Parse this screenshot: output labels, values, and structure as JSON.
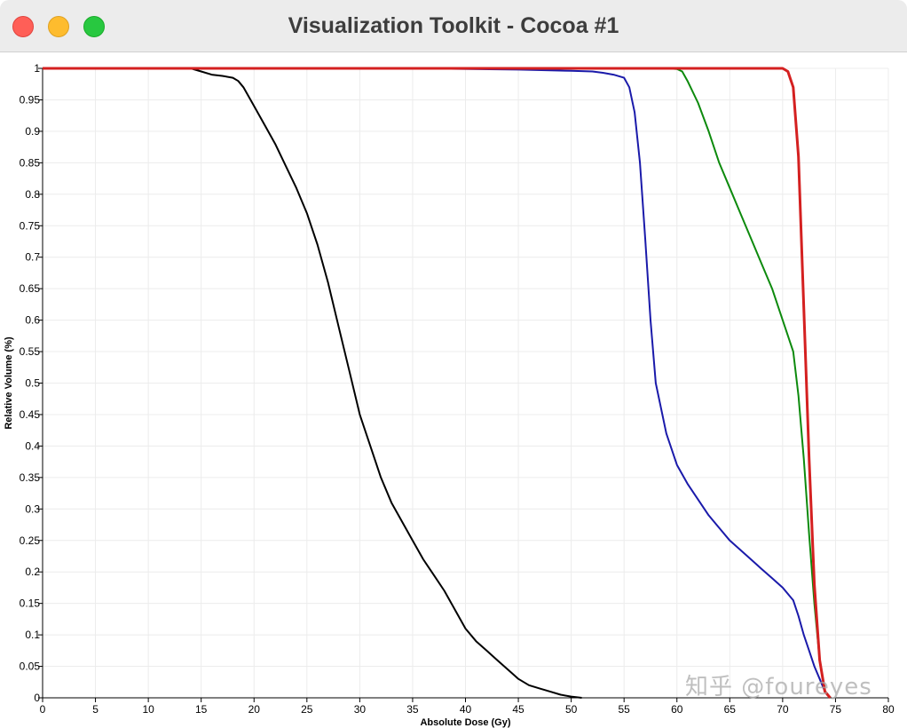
{
  "window": {
    "title": "Visualization Toolkit - Cocoa #1"
  },
  "watermark": {
    "text": "知乎 @foureyes"
  },
  "colors": {
    "titlebar": "#ececec",
    "close": "#ff5f57",
    "minimize": "#febc2e",
    "maximize": "#28c840"
  },
  "chart_data": {
    "type": "line",
    "xlabel": "Absolute Dose (Gy)",
    "ylabel": "Relative Volume (%)",
    "xlim": [
      0,
      80
    ],
    "ylim": [
      0,
      1
    ],
    "xticks": [
      0,
      5,
      10,
      15,
      20,
      25,
      30,
      35,
      40,
      45,
      50,
      55,
      60,
      65,
      70,
      75,
      80
    ],
    "yticks": [
      "0",
      "0.05",
      "0.1",
      "0.15",
      "0.2",
      "0.25",
      "0.3",
      "0.35",
      "0.4",
      "0.45",
      "0.5",
      "0.55",
      "0.6",
      "0.65",
      "0.7",
      "0.75",
      "0.8",
      "0.85",
      "0.9",
      "0.95",
      "1"
    ],
    "grid": true,
    "legend": "none",
    "series": [
      {
        "color": "#000000",
        "x": [
          0,
          14,
          15,
          16,
          17,
          18,
          18.5,
          19,
          20,
          21,
          22,
          23,
          24,
          25,
          26,
          27,
          28,
          29,
          30,
          31,
          32,
          33,
          34,
          35,
          36,
          37,
          38,
          39,
          40,
          41,
          42,
          43,
          44,
          45,
          46,
          47,
          48,
          49,
          50,
          51
        ],
        "y": [
          1,
          1,
          0.995,
          0.99,
          0.988,
          0.985,
          0.98,
          0.97,
          0.94,
          0.91,
          0.88,
          0.845,
          0.81,
          0.77,
          0.72,
          0.66,
          0.59,
          0.52,
          0.45,
          0.4,
          0.35,
          0.31,
          0.28,
          0.25,
          0.22,
          0.195,
          0.17,
          0.14,
          0.11,
          0.09,
          0.075,
          0.06,
          0.045,
          0.03,
          0.02,
          0.015,
          0.01,
          0.005,
          0.002,
          0
        ]
      },
      {
        "color": "#1a1aaa",
        "x": [
          0,
          35,
          45,
          50,
          52,
          53,
          54,
          55,
          55.5,
          56,
          56.5,
          57,
          57.5,
          58,
          59,
          60,
          61,
          62,
          63,
          64,
          65,
          66,
          67,
          68,
          69,
          70,
          71,
          71.5,
          72,
          72.5,
          73,
          73.5,
          74,
          74.5
        ],
        "y": [
          1,
          1,
          0.998,
          0.996,
          0.995,
          0.993,
          0.99,
          0.985,
          0.97,
          0.93,
          0.85,
          0.73,
          0.6,
          0.5,
          0.42,
          0.37,
          0.34,
          0.315,
          0.29,
          0.27,
          0.25,
          0.235,
          0.22,
          0.205,
          0.19,
          0.175,
          0.155,
          0.13,
          0.1,
          0.075,
          0.05,
          0.03,
          0.01,
          0
        ]
      },
      {
        "color": "#0d8a0d",
        "x": [
          0,
          59,
          60,
          60.5,
          61,
          62,
          63,
          64,
          65,
          66,
          67,
          68,
          69,
          70,
          71,
          71.5,
          72,
          72.5,
          73,
          73.5,
          74,
          74.5
        ],
        "y": [
          1,
          1,
          0.999,
          0.995,
          0.98,
          0.945,
          0.9,
          0.85,
          0.81,
          0.77,
          0.73,
          0.69,
          0.65,
          0.6,
          0.55,
          0.48,
          0.38,
          0.26,
          0.15,
          0.06,
          0.01,
          0
        ]
      },
      {
        "color": "#d42020",
        "x": [
          0,
          70,
          70.5,
          71,
          71.5,
          72,
          72.5,
          73,
          73.5,
          74,
          74.5
        ],
        "y": [
          1,
          1,
          0.995,
          0.97,
          0.86,
          0.62,
          0.38,
          0.18,
          0.06,
          0.01,
          0
        ]
      }
    ]
  }
}
